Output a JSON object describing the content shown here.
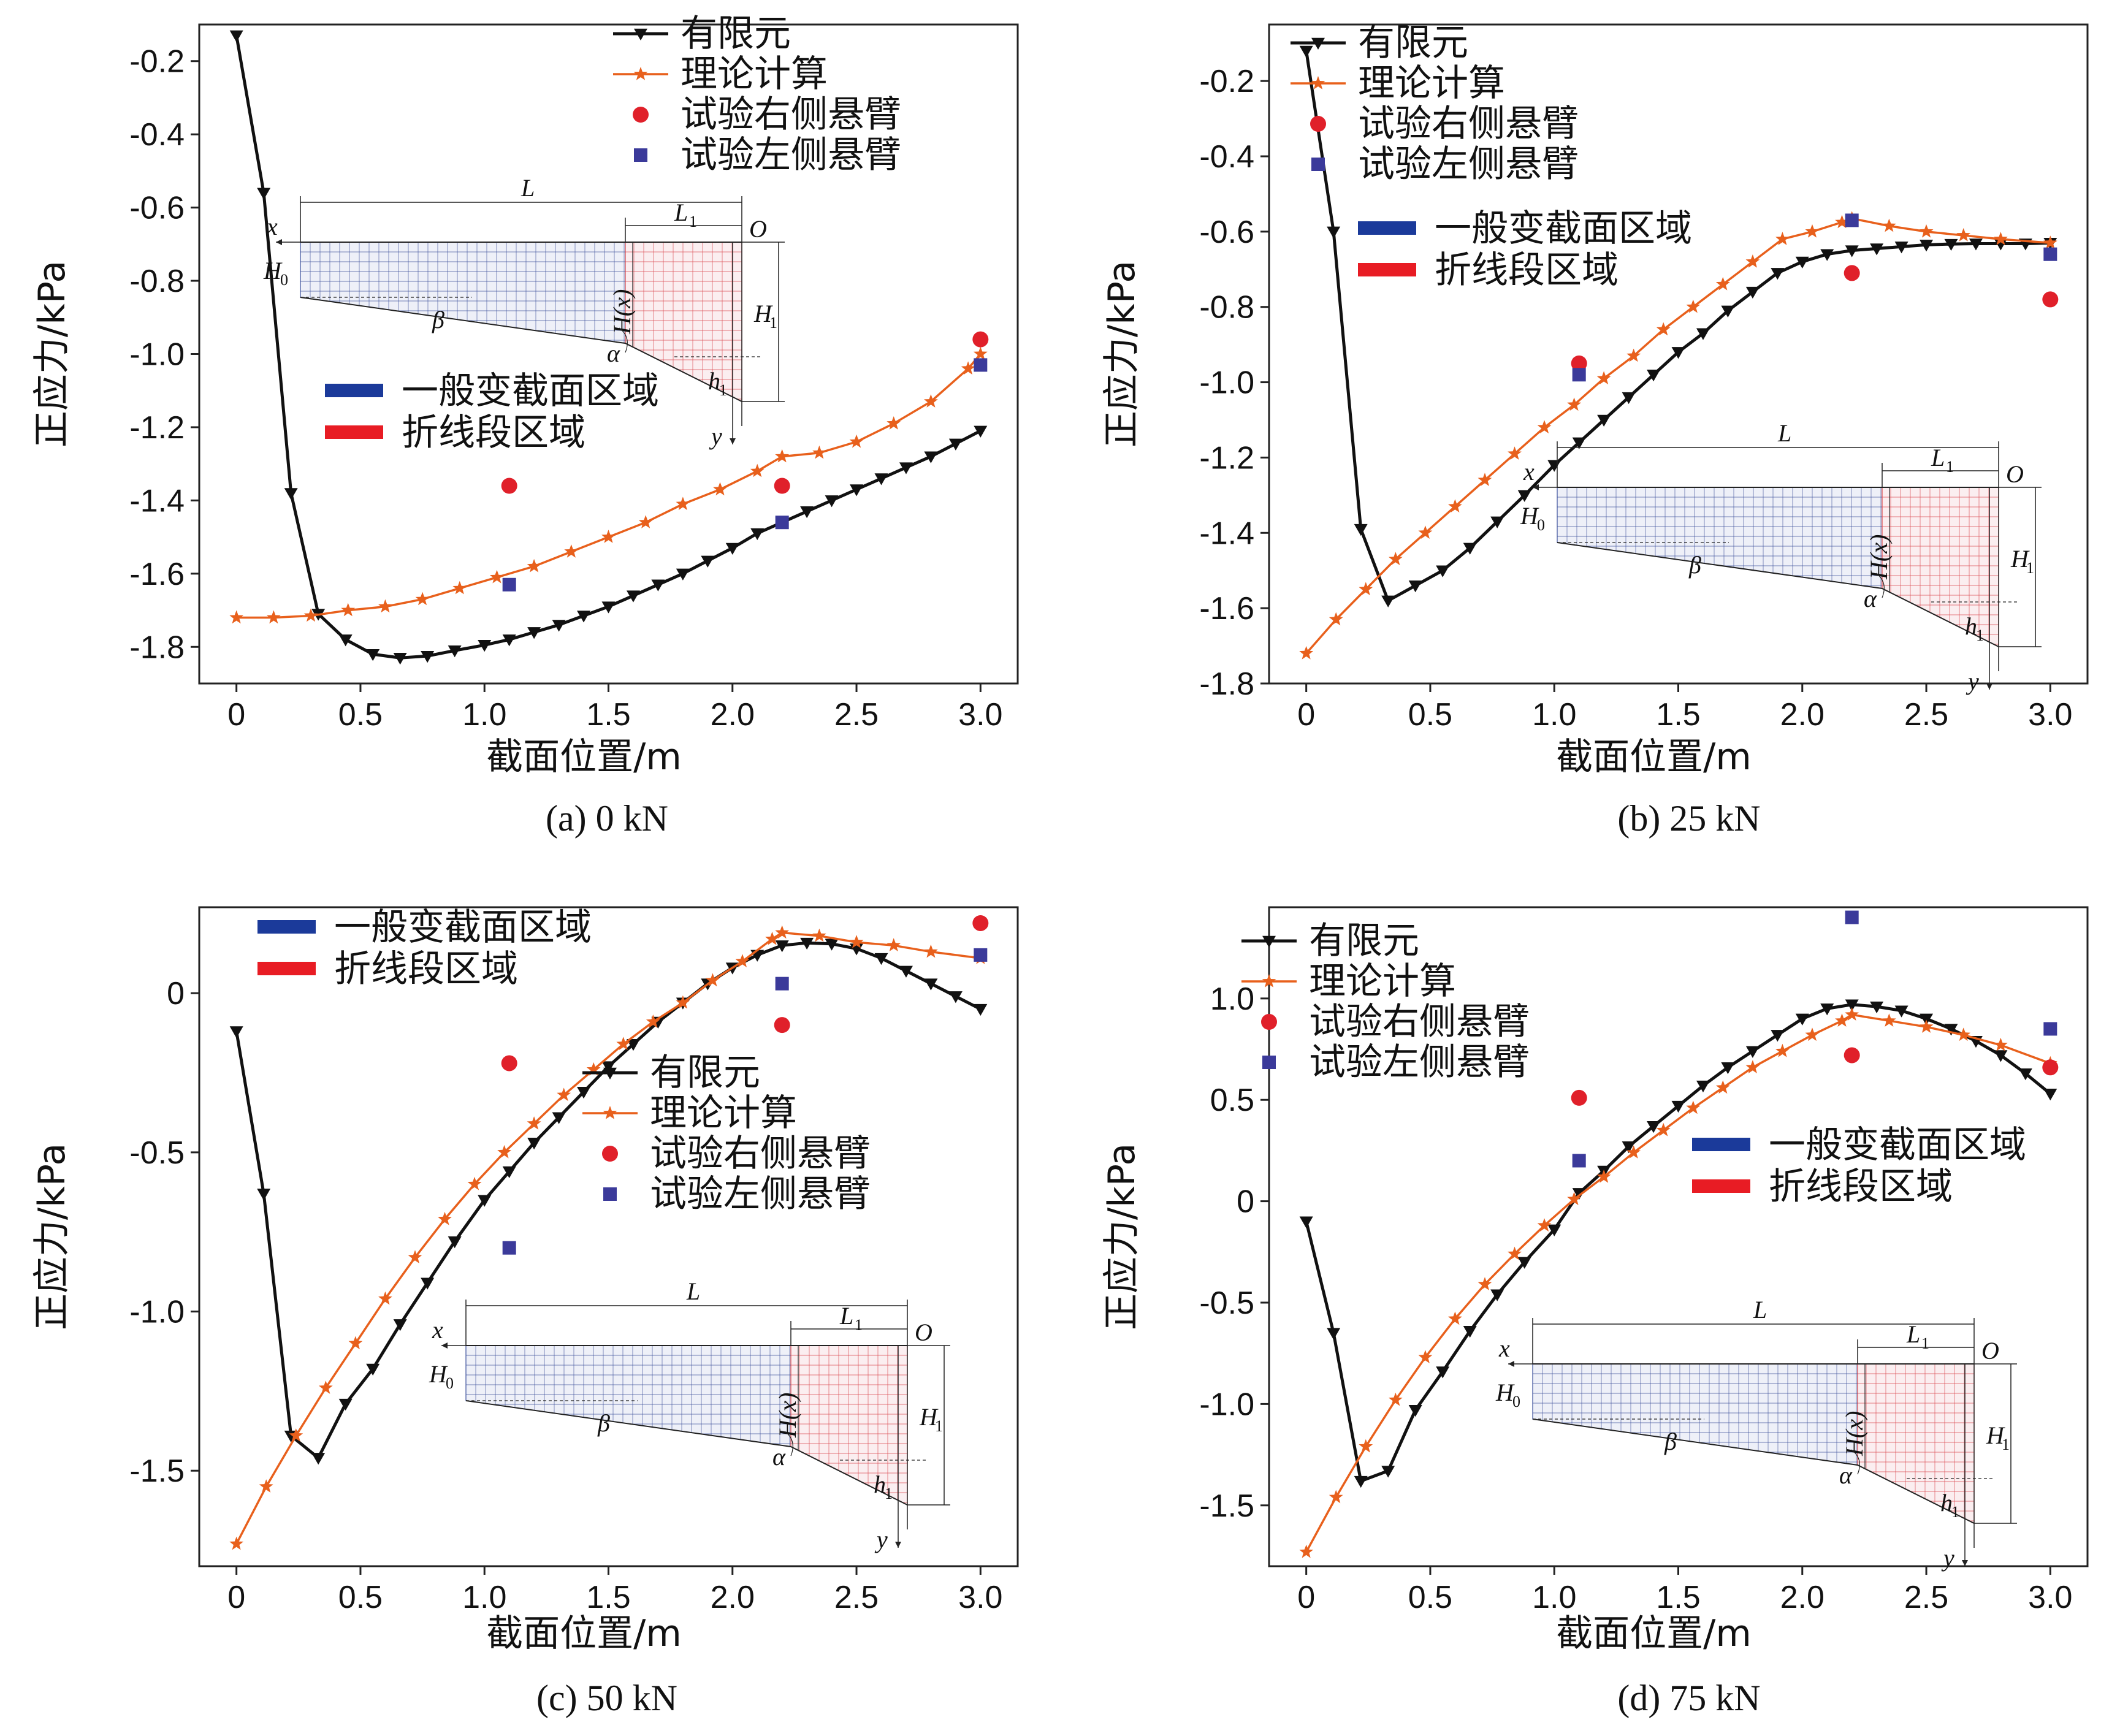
{
  "colors": {
    "fem": "#111111",
    "theory": "#e8601c",
    "exp_right": "#e0202a",
    "exp_left": "#3b3a9a",
    "legend_general": "#1b3a9a",
    "legend_polyline": "#e81c24",
    "inset_blue": "#3b4f9a",
    "inset_red": "#d9454a"
  },
  "legend_labels": {
    "fem": "有限元",
    "theory": "理论计算",
    "exp_right": "试验右侧悬臂",
    "exp_left": "试验左侧悬臂",
    "region_general": "一般变截面区域",
    "region_polyline": "折线段区域"
  },
  "inset_labels": {
    "L": "L",
    "L1": "L",
    "L1_sub": "1",
    "O": "O",
    "x": "x",
    "y": "y",
    "H0": "H",
    "H0_sub": "0",
    "H1": "H",
    "H1_sub": "1",
    "h1": "h",
    "h1_sub": "1",
    "Hx": "H(x)",
    "alpha": "α",
    "beta": "β"
  },
  "chart_data": [
    {
      "type": "line",
      "caption": "(a) 0 kN",
      "xlabel": "截面位置/m",
      "ylabel": "正应力/kPa",
      "xlim": [
        -0.15,
        3.15
      ],
      "ylim": [
        -1.9,
        -0.1
      ],
      "xticks": [
        0,
        0.5,
        1.0,
        1.5,
        2.0,
        2.5,
        3.0
      ],
      "xtick_labels": [
        "0",
        "0.5",
        "1.0",
        "1.5",
        "2.0",
        "2.5",
        "3.0"
      ],
      "yticks": [
        -1.8,
        -1.6,
        -1.4,
        -1.2,
        -1.0,
        -0.8,
        -0.6,
        -0.4,
        -0.2
      ],
      "ytick_labels": [
        "-1.8",
        "-1.6",
        "-1.4",
        "-1.2",
        "-1.0",
        "-0.8",
        "-0.6",
        "-0.4",
        "-0.2"
      ],
      "series": [
        {
          "name": "有限元",
          "kind": "fem",
          "x": [
            0,
            0.11,
            0.22,
            0.33,
            0.44,
            0.55,
            0.66,
            0.77,
            0.88,
            1.0,
            1.1,
            1.2,
            1.3,
            1.4,
            1.5,
            1.6,
            1.7,
            1.8,
            1.9,
            2.0,
            2.1,
            2.2,
            2.3,
            2.4,
            2.5,
            2.6,
            2.7,
            2.8,
            2.9,
            3.0
          ],
          "y": [
            -0.13,
            -0.56,
            -1.38,
            -1.71,
            -1.78,
            -1.82,
            -1.83,
            -1.825,
            -1.81,
            -1.795,
            -1.78,
            -1.76,
            -1.74,
            -1.715,
            -1.69,
            -1.66,
            -1.63,
            -1.6,
            -1.565,
            -1.53,
            -1.49,
            -1.46,
            -1.43,
            -1.4,
            -1.37,
            -1.34,
            -1.31,
            -1.28,
            -1.245,
            -1.21
          ]
        },
        {
          "name": "理论计算",
          "kind": "theory",
          "x": [
            0,
            0.15,
            0.3,
            0.45,
            0.6,
            0.75,
            0.9,
            1.05,
            1.2,
            1.35,
            1.5,
            1.65,
            1.8,
            1.95,
            2.1,
            2.2,
            2.35,
            2.5,
            2.65,
            2.8,
            2.95,
            3.0
          ],
          "y": [
            -1.72,
            -1.72,
            -1.715,
            -1.7,
            -1.69,
            -1.67,
            -1.64,
            -1.61,
            -1.58,
            -1.54,
            -1.5,
            -1.46,
            -1.41,
            -1.37,
            -1.32,
            -1.28,
            -1.27,
            -1.24,
            -1.19,
            -1.13,
            -1.04,
            -1.0
          ]
        },
        {
          "name": "试验右侧悬臂",
          "kind": "exp_right",
          "x": [
            1.1,
            2.2,
            3.0
          ],
          "y": [
            -1.36,
            -1.36,
            -0.96
          ]
        },
        {
          "name": "试验左侧悬臂",
          "kind": "exp_left",
          "x": [
            1.1,
            2.2,
            3.0
          ],
          "y": [
            -1.63,
            -1.46,
            -1.03
          ]
        }
      ]
    },
    {
      "type": "line",
      "caption": "(b) 25 kN",
      "xlabel": "截面位置/m",
      "ylabel": "正应力/kPa",
      "xlim": [
        -0.15,
        3.15
      ],
      "ylim": [
        -1.8,
        -0.05
      ],
      "xticks": [
        0,
        0.5,
        1.0,
        1.5,
        2.0,
        2.5,
        3.0
      ],
      "xtick_labels": [
        "0",
        "0.5",
        "1.0",
        "1.5",
        "2.0",
        "2.5",
        "3.0"
      ],
      "yticks": [
        -1.8,
        -1.6,
        -1.4,
        -1.2,
        -1.0,
        -0.8,
        -0.6,
        -0.4,
        -0.2
      ],
      "ytick_labels": [
        "-1.8",
        "-1.6",
        "-1.4",
        "-1.2",
        "-1.0",
        "-0.8",
        "-0.6",
        "-0.4",
        "-0.2"
      ],
      "series": [
        {
          "name": "有限元",
          "kind": "fem",
          "x": [
            0,
            0.11,
            0.22,
            0.33,
            0.44,
            0.55,
            0.66,
            0.77,
            0.88,
            1.0,
            1.1,
            1.2,
            1.3,
            1.4,
            1.5,
            1.6,
            1.7,
            1.8,
            1.9,
            2.0,
            2.1,
            2.2,
            2.3,
            2.4,
            2.5,
            2.6,
            2.7,
            2.8,
            2.9,
            3.0
          ],
          "y": [
            -0.12,
            -0.6,
            -1.39,
            -1.58,
            -1.54,
            -1.5,
            -1.44,
            -1.37,
            -1.3,
            -1.22,
            -1.16,
            -1.1,
            -1.04,
            -0.98,
            -0.92,
            -0.87,
            -0.81,
            -0.76,
            -0.71,
            -0.68,
            -0.66,
            -0.65,
            -0.645,
            -0.64,
            -0.635,
            -0.633,
            -0.632,
            -0.632,
            -0.632,
            -0.63
          ]
        },
        {
          "name": "理论计算",
          "kind": "theory",
          "x": [
            0,
            0.12,
            0.24,
            0.36,
            0.48,
            0.6,
            0.72,
            0.84,
            0.96,
            1.08,
            1.2,
            1.32,
            1.44,
            1.56,
            1.68,
            1.8,
            1.92,
            2.04,
            2.16,
            2.2,
            2.35,
            2.5,
            2.65,
            2.8,
            3.0
          ],
          "y": [
            -1.72,
            -1.63,
            -1.55,
            -1.47,
            -1.4,
            -1.33,
            -1.26,
            -1.19,
            -1.12,
            -1.06,
            -0.99,
            -0.93,
            -0.86,
            -0.8,
            -0.74,
            -0.68,
            -0.62,
            -0.6,
            -0.575,
            -0.565,
            -0.585,
            -0.6,
            -0.61,
            -0.62,
            -0.63
          ]
        },
        {
          "name": "试验右侧悬臂",
          "kind": "exp_right",
          "x": [
            1.1,
            2.2,
            3.0
          ],
          "y": [
            -0.95,
            -0.71,
            -0.78
          ]
        },
        {
          "name": "试验左侧悬臂",
          "kind": "exp_left",
          "x": [
            1.1,
            2.2,
            3.0
          ],
          "y": [
            -0.98,
            -0.57,
            -0.66
          ]
        }
      ]
    },
    {
      "type": "line",
      "caption": "(c) 50 kN",
      "xlabel": "截面位置/m",
      "ylabel": "正应力/kPa",
      "xlim": [
        -0.15,
        3.15
      ],
      "ylim": [
        -1.8,
        0.27
      ],
      "xticks": [
        0,
        0.5,
        1.0,
        1.5,
        2.0,
        2.5,
        3.0
      ],
      "xtick_labels": [
        "0",
        "0.5",
        "1.0",
        "1.5",
        "2.0",
        "2.5",
        "3.0"
      ],
      "yticks": [
        -1.5,
        -1.0,
        -0.5,
        0
      ],
      "ytick_labels": [
        "-1.5",
        "-1.0",
        "-0.5",
        "0"
      ],
      "series": [
        {
          "name": "有限元",
          "kind": "fem",
          "x": [
            0,
            0.11,
            0.22,
            0.33,
            0.44,
            0.55,
            0.66,
            0.77,
            0.88,
            1.0,
            1.1,
            1.2,
            1.3,
            1.4,
            1.5,
            1.6,
            1.7,
            1.8,
            1.9,
            2.0,
            2.1,
            2.2,
            2.3,
            2.4,
            2.5,
            2.6,
            2.7,
            2.8,
            2.9,
            3.0
          ],
          "y": [
            -0.12,
            -0.63,
            -1.39,
            -1.46,
            -1.29,
            -1.18,
            -1.04,
            -0.91,
            -0.78,
            -0.65,
            -0.56,
            -0.47,
            -0.39,
            -0.31,
            -0.23,
            -0.16,
            -0.09,
            -0.03,
            0.03,
            0.08,
            0.12,
            0.15,
            0.158,
            0.155,
            0.14,
            0.11,
            0.07,
            0.03,
            -0.01,
            -0.05
          ]
        },
        {
          "name": "理论计算",
          "kind": "theory",
          "x": [
            0,
            0.12,
            0.24,
            0.36,
            0.48,
            0.6,
            0.72,
            0.84,
            0.96,
            1.08,
            1.2,
            1.32,
            1.44,
            1.56,
            1.68,
            1.8,
            1.92,
            2.04,
            2.16,
            2.2,
            2.35,
            2.5,
            2.65,
            2.8,
            3.0
          ],
          "y": [
            -1.73,
            -1.55,
            -1.39,
            -1.24,
            -1.1,
            -0.96,
            -0.83,
            -0.71,
            -0.6,
            -0.5,
            -0.41,
            -0.32,
            -0.24,
            -0.16,
            -0.09,
            -0.03,
            0.04,
            0.1,
            0.17,
            0.19,
            0.18,
            0.16,
            0.15,
            0.13,
            0.11
          ]
        },
        {
          "name": "试验右侧悬臂",
          "kind": "exp_right",
          "x": [
            1.1,
            2.2,
            3.0
          ],
          "y": [
            -0.22,
            -0.1,
            0.22
          ]
        },
        {
          "name": "试验左侧悬臂",
          "kind": "exp_left",
          "x": [
            1.1,
            2.2,
            3.0
          ],
          "y": [
            -0.8,
            0.03,
            0.12
          ]
        }
      ]
    },
    {
      "type": "line",
      "caption": "(d) 75 kN",
      "xlabel": "截面位置/m",
      "ylabel": "正应力/kPa",
      "xlim": [
        -0.15,
        3.15
      ],
      "ylim": [
        -1.8,
        1.45
      ],
      "xticks": [
        0,
        0.5,
        1.0,
        1.5,
        2.0,
        2.5,
        3.0
      ],
      "xtick_labels": [
        "0",
        "0.5",
        "1.0",
        "1.5",
        "2.0",
        "2.5",
        "3.0"
      ],
      "yticks": [
        -1.5,
        -1.0,
        -0.5,
        0,
        0.5,
        1.0
      ],
      "ytick_labels": [
        "-1.5",
        "-1.0",
        "-0.5",
        "0",
        "0.5",
        "1.0"
      ],
      "series": [
        {
          "name": "有限元",
          "kind": "fem",
          "x": [
            0,
            0.11,
            0.22,
            0.33,
            0.44,
            0.55,
            0.66,
            0.77,
            0.88,
            1.0,
            1.1,
            1.2,
            1.3,
            1.4,
            1.5,
            1.6,
            1.7,
            1.8,
            1.9,
            2.0,
            2.1,
            2.2,
            2.3,
            2.4,
            2.5,
            2.6,
            2.7,
            2.8,
            2.9,
            3.0
          ],
          "y": [
            -0.1,
            -0.65,
            -1.38,
            -1.33,
            -1.03,
            -0.84,
            -0.64,
            -0.46,
            -0.3,
            -0.14,
            0.04,
            0.15,
            0.27,
            0.37,
            0.47,
            0.57,
            0.66,
            0.74,
            0.82,
            0.9,
            0.95,
            0.97,
            0.96,
            0.94,
            0.9,
            0.85,
            0.79,
            0.72,
            0.63,
            0.53
          ]
        },
        {
          "name": "理论计算",
          "kind": "theory",
          "x": [
            0,
            0.12,
            0.24,
            0.36,
            0.48,
            0.6,
            0.72,
            0.84,
            0.96,
            1.08,
            1.2,
            1.32,
            1.44,
            1.56,
            1.68,
            1.8,
            1.92,
            2.04,
            2.16,
            2.2,
            2.35,
            2.5,
            2.65,
            2.8,
            3.0
          ],
          "y": [
            -1.73,
            -1.46,
            -1.21,
            -0.98,
            -0.77,
            -0.58,
            -0.41,
            -0.26,
            -0.12,
            0.01,
            0.12,
            0.24,
            0.35,
            0.46,
            0.56,
            0.66,
            0.74,
            0.82,
            0.89,
            0.92,
            0.89,
            0.86,
            0.82,
            0.77,
            0.68
          ]
        },
        {
          "name": "试验右侧悬臂",
          "kind": "exp_right",
          "x": [
            1.1,
            2.2,
            3.0
          ],
          "y": [
            0.51,
            0.72,
            0.66
          ]
        },
        {
          "name": "试验左侧悬臂",
          "kind": "exp_left",
          "x": [
            1.1,
            2.2,
            3.0
          ],
          "y": [
            0.2,
            1.4,
            0.85
          ]
        }
      ]
    }
  ]
}
